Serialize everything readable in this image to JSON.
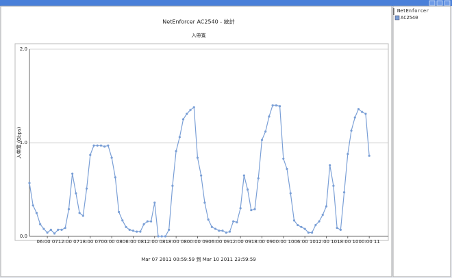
{
  "chart_data": {
    "type": "line",
    "title": "NetEnforcer AC2540 - 統計",
    "subtitle": "入帶寬",
    "y_label": "入帶寬 (Gbps)",
    "x_label": "Mar 07 2011  00:59:59  到  Mar 10 2011  23:59:59",
    "legend_title": "NetEnforcer",
    "legend": "right",
    "grid": true,
    "x": [
      "2011-03-07T01:00",
      "2011-03-07T02:00",
      "2011-03-07T03:00",
      "2011-03-07T04:00",
      "2011-03-07T05:00",
      "2011-03-07T06:00",
      "2011-03-07T07:00",
      "2011-03-07T08:00",
      "2011-03-07T09:00",
      "2011-03-07T10:00",
      "2011-03-07T11:00",
      "2011-03-07T12:00",
      "2011-03-07T13:00",
      "2011-03-07T14:00",
      "2011-03-07T15:00",
      "2011-03-07T16:00",
      "2011-03-07T17:00",
      "2011-03-07T18:00",
      "2011-03-07T19:00",
      "2011-03-07T20:00",
      "2011-03-07T21:00",
      "2011-03-07T22:00",
      "2011-03-07T23:00",
      "2011-03-08T00:00",
      "2011-03-08T01:00",
      "2011-03-08T02:00",
      "2011-03-08T03:00",
      "2011-03-08T04:00",
      "2011-03-08T05:00",
      "2011-03-08T06:00",
      "2011-03-08T07:00",
      "2011-03-08T08:00",
      "2011-03-08T09:00",
      "2011-03-08T10:00",
      "2011-03-08T11:00",
      "2011-03-08T12:00",
      "2011-03-08T13:00",
      "2011-03-08T14:00",
      "2011-03-08T15:00",
      "2011-03-08T16:00",
      "2011-03-08T17:00",
      "2011-03-08T18:00",
      "2011-03-08T19:00",
      "2011-03-08T20:00",
      "2011-03-08T21:00",
      "2011-03-08T22:00",
      "2011-03-08T23:00",
      "2011-03-09T00:00",
      "2011-03-09T01:00",
      "2011-03-09T02:00",
      "2011-03-09T03:00",
      "2011-03-09T04:00",
      "2011-03-09T05:00",
      "2011-03-09T06:00",
      "2011-03-09T07:00",
      "2011-03-09T08:00",
      "2011-03-09T09:00",
      "2011-03-09T10:00",
      "2011-03-09T11:00",
      "2011-03-09T12:00",
      "2011-03-09T13:00",
      "2011-03-09T14:00",
      "2011-03-09T15:00",
      "2011-03-09T16:00",
      "2011-03-09T17:00",
      "2011-03-09T18:00",
      "2011-03-09T19:00",
      "2011-03-09T20:00",
      "2011-03-09T21:00",
      "2011-03-09T22:00",
      "2011-03-09T23:00",
      "2011-03-10T00:00",
      "2011-03-10T01:00",
      "2011-03-10T02:00",
      "2011-03-10T03:00",
      "2011-03-10T04:00",
      "2011-03-10T05:00",
      "2011-03-10T06:00",
      "2011-03-10T07:00",
      "2011-03-10T08:00",
      "2011-03-10T09:00",
      "2011-03-10T10:00",
      "2011-03-10T11:00",
      "2011-03-10T12:00",
      "2011-03-10T13:00",
      "2011-03-10T14:00",
      "2011-03-10T15:00",
      "2011-03-10T16:00",
      "2011-03-10T17:00",
      "2011-03-10T18:00",
      "2011-03-10T19:00",
      "2011-03-10T20:00",
      "2011-03-10T21:00",
      "2011-03-10T22:00",
      "2011-03-10T23:00",
      "2011-03-11T00:00"
    ],
    "series": [
      {
        "name": "AC2540",
        "color": "#7a9fd6",
        "values": [
          0.57,
          0.33,
          0.25,
          0.13,
          0.08,
          0.04,
          0.07,
          0.03,
          0.07,
          0.07,
          0.09,
          0.29,
          0.67,
          0.46,
          0.25,
          0.22,
          0.51,
          0.87,
          0.97,
          0.97,
          0.97,
          0.96,
          0.97,
          0.84,
          0.63,
          0.26,
          0.17,
          0.1,
          0.07,
          0.06,
          0.05,
          0.05,
          0.13,
          0.16,
          0.16,
          0.36,
          0.0,
          0.0,
          0.0,
          0.07,
          0.54,
          0.91,
          1.06,
          1.25,
          1.31,
          1.35,
          1.38,
          0.84,
          0.65,
          0.36,
          0.18,
          0.1,
          0.08,
          0.06,
          0.06,
          0.04,
          0.05,
          0.16,
          0.15,
          0.3,
          0.65,
          0.5,
          0.28,
          0.29,
          0.62,
          1.03,
          1.12,
          1.28,
          1.4,
          1.4,
          1.39,
          0.83,
          0.72,
          0.46,
          0.17,
          0.12,
          0.1,
          0.08,
          0.04,
          0.04,
          0.12,
          0.16,
          0.23,
          0.32,
          0.76,
          0.54,
          0.09,
          0.07,
          0.47,
          0.88,
          1.13,
          1.27,
          1.36,
          1.33,
          1.31,
          0.86
        ]
      }
    ],
    "xlim": [
      "2011-03-07T01:00",
      "2011-03-11T05:20"
    ],
    "xticks": [
      {
        "value": "2011-03-07T06:00",
        "label": "06:00 07"
      },
      {
        "value": "2011-03-07T12:00",
        "label": "12:00 07"
      },
      {
        "value": "2011-03-07T18:00",
        "label": "18:00 07"
      },
      {
        "value": "2011-03-08T00:00",
        "label": "00:00 08"
      },
      {
        "value": "2011-03-08T06:00",
        "label": "06:00 08"
      },
      {
        "value": "2011-03-08T12:00",
        "label": "12:00 08"
      },
      {
        "value": "2011-03-08T18:00",
        "label": "18:00 08"
      },
      {
        "value": "2011-03-09T00:00",
        "label": "00:00 09"
      },
      {
        "value": "2011-03-09T06:00",
        "label": "06:00 09"
      },
      {
        "value": "2011-03-09T12:00",
        "label": "12:00 09"
      },
      {
        "value": "2011-03-09T18:00",
        "label": "18:00 09"
      },
      {
        "value": "2011-03-10T00:00",
        "label": "00:00 10"
      },
      {
        "value": "2011-03-10T06:00",
        "label": "06:00 10"
      },
      {
        "value": "2011-03-10T12:00",
        "label": "12:00 10"
      },
      {
        "value": "2011-03-10T18:00",
        "label": "18:00 10"
      },
      {
        "value": "2011-03-11T00:00",
        "label": "00:00 11"
      }
    ],
    "ylim": [
      0,
      2
    ],
    "yticks": [
      {
        "value": 0,
        "label": "0.0"
      },
      {
        "value": 1,
        "label": "1.0"
      },
      {
        "value": 2,
        "label": "2.0"
      }
    ]
  }
}
